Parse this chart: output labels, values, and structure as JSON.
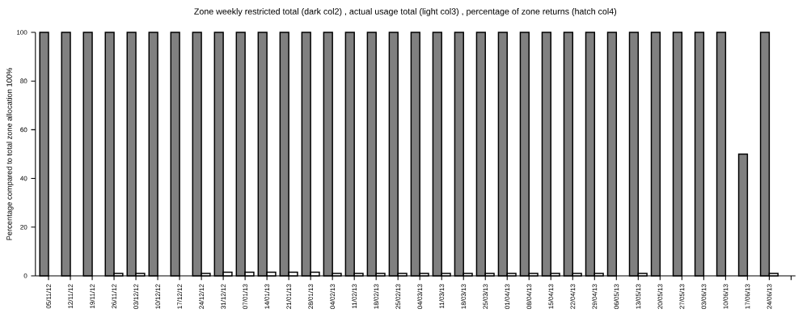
{
  "chart_data": {
    "type": "bar",
    "title": "Zone weekly restricted total (dark col2) , actual usage total (light col3) , percentage of zone returns (hatch col4)",
    "ylabel": "Percentage compared to total zone allocation 100%",
    "categories": [
      "05/11/12",
      "12/11/12",
      "19/11/12",
      "26/11/12",
      "03/12/12",
      "10/12/12",
      "17/12/12",
      "24/12/12",
      "31/12/12",
      "07/01/13",
      "14/01/13",
      "21/01/13",
      "28/01/13",
      "04/02/13",
      "11/02/13",
      "18/02/13",
      "25/02/13",
      "04/03/13",
      "11/03/13",
      "18/03/13",
      "25/03/13",
      "01/04/13",
      "08/04/13",
      "15/04/13",
      "22/04/13",
      "29/04/13",
      "06/05/13",
      "13/05/13",
      "20/05/13",
      "27/05/13",
      "03/06/13",
      "10/06/13",
      "17/06/13",
      "24/06/13",
      null
    ],
    "series": [
      {
        "color": "#808080",
        "values": [
          100,
          100,
          100,
          100,
          100,
          100,
          100,
          100,
          100,
          100,
          100,
          100,
          100,
          100,
          100,
          100,
          100,
          100,
          100,
          100,
          100,
          100,
          100,
          100,
          100,
          100,
          100,
          100,
          100,
          100,
          100,
          100,
          50,
          100,
          null
        ]
      },
      {
        "color": "#ffffff",
        "values": [
          null,
          null,
          null,
          1,
          1,
          null,
          null,
          1,
          1.5,
          1.5,
          1.5,
          1.5,
          1.5,
          1,
          1,
          1,
          1,
          1,
          1,
          1,
          1,
          1,
          1,
          1,
          1,
          1,
          null,
          1,
          null,
          null,
          null,
          null,
          null,
          1,
          null
        ]
      }
    ],
    "ylim": [
      0,
      100
    ],
    "yticks": [
      0,
      20,
      40,
      60,
      80,
      100
    ]
  }
}
